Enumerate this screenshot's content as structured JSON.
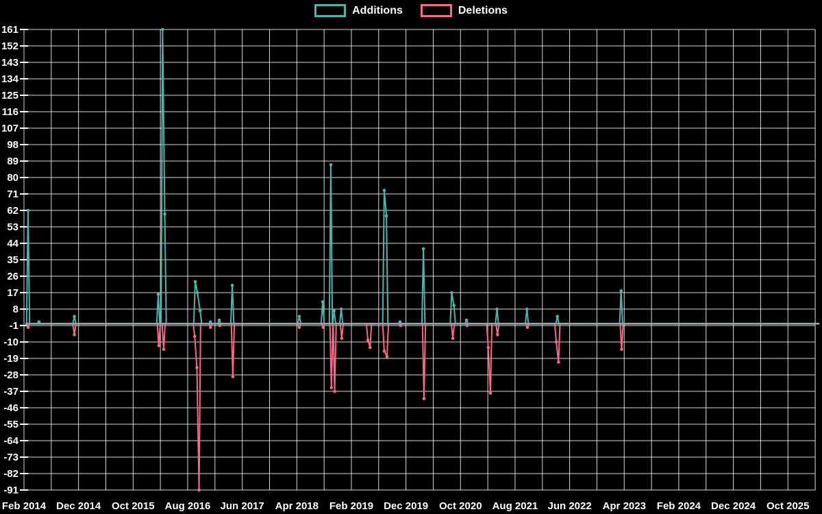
{
  "legend": {
    "items": [
      {
        "label": "Additions",
        "color": "#4db6ac"
      },
      {
        "label": "Deletions",
        "color": "#f8688a"
      }
    ]
  },
  "chart_data": {
    "type": "line",
    "title": "",
    "background": "#000000",
    "grid_color": "#ffffff",
    "text_color": "#ffffff",
    "zero_line_color": "#94a8b0",
    "legend_position": "top-center",
    "grid": "on",
    "x_axis": {
      "unit": "months since Feb 2014",
      "tick_labels": [
        "Feb 2014",
        "Dec 2014",
        "Oct 2015",
        "Aug 2016",
        "Jun 2017",
        "Apr 2018",
        "Feb 2019",
        "Dec 2019",
        "Oct 2020",
        "Aug 2021",
        "Jun 2022",
        "Apr 2023",
        "Feb 2024",
        "Dec 2024",
        "Oct 2025"
      ],
      "tick_interval_months": 10,
      "gridline_interval_months": 5,
      "start_month": 0,
      "end_month": 145.8
    },
    "y_axis": {
      "min": -91,
      "max": 161,
      "step": 9,
      "ticks": [
        161,
        152,
        143,
        134,
        125,
        116,
        107,
        98,
        89,
        80,
        71,
        62,
        53,
        44,
        35,
        26,
        17,
        8,
        -1,
        -10,
        -19,
        -28,
        -37,
        -46,
        -55,
        -64,
        -73,
        -82,
        -91
      ]
    },
    "baseline_value": 0,
    "series": [
      {
        "name": "Additions",
        "color": "#4db6ac",
        "points": [
          [
            0.5,
            62
          ],
          [
            2.5,
            1
          ],
          [
            9,
            4
          ],
          [
            24.4,
            16
          ],
          [
            25.2,
            161
          ],
          [
            25.6,
            60
          ],
          [
            31.2,
            23
          ],
          [
            31.6,
            17
          ],
          [
            32.1,
            7
          ],
          [
            34,
            1
          ],
          [
            35.6,
            2
          ],
          [
            38,
            21
          ],
          [
            50.3,
            4
          ],
          [
            54.6,
            12
          ],
          [
            56.1,
            87
          ],
          [
            56.7,
            7
          ],
          [
            58,
            8
          ],
          [
            65.9,
            73
          ],
          [
            66.3,
            59
          ],
          [
            68.8,
            1
          ],
          [
            73.1,
            41
          ],
          [
            78.3,
            17
          ],
          [
            78.7,
            10
          ],
          [
            81,
            2
          ],
          [
            86.6,
            8
          ],
          [
            92.1,
            8
          ],
          [
            97.7,
            4
          ],
          [
            109.4,
            18
          ]
        ]
      },
      {
        "name": "Deletions",
        "color": "#f8688a",
        "points": [
          [
            0.5,
            -2
          ],
          [
            9,
            -6
          ],
          [
            24.5,
            -12
          ],
          [
            25.4,
            -14
          ],
          [
            31.1,
            -7
          ],
          [
            31.5,
            -24
          ],
          [
            31.9,
            -91
          ],
          [
            34,
            -2
          ],
          [
            35.7,
            -1
          ],
          [
            38.1,
            -29
          ],
          [
            50.3,
            -2
          ],
          [
            54.7,
            -2
          ],
          [
            56.2,
            -35
          ],
          [
            56.8,
            -37
          ],
          [
            58.1,
            -8
          ],
          [
            62.9,
            -9
          ],
          [
            63.3,
            -13
          ],
          [
            65.9,
            -15
          ],
          [
            66.4,
            -18
          ],
          [
            68.9,
            -1
          ],
          [
            73.2,
            -41
          ],
          [
            78.5,
            -8
          ],
          [
            81.1,
            -1
          ],
          [
            85,
            -13
          ],
          [
            85.4,
            -38
          ],
          [
            86.7,
            -6
          ],
          [
            92.2,
            -2
          ],
          [
            97.5,
            -10
          ],
          [
            97.9,
            -21
          ],
          [
            109.5,
            -14
          ]
        ]
      }
    ]
  }
}
